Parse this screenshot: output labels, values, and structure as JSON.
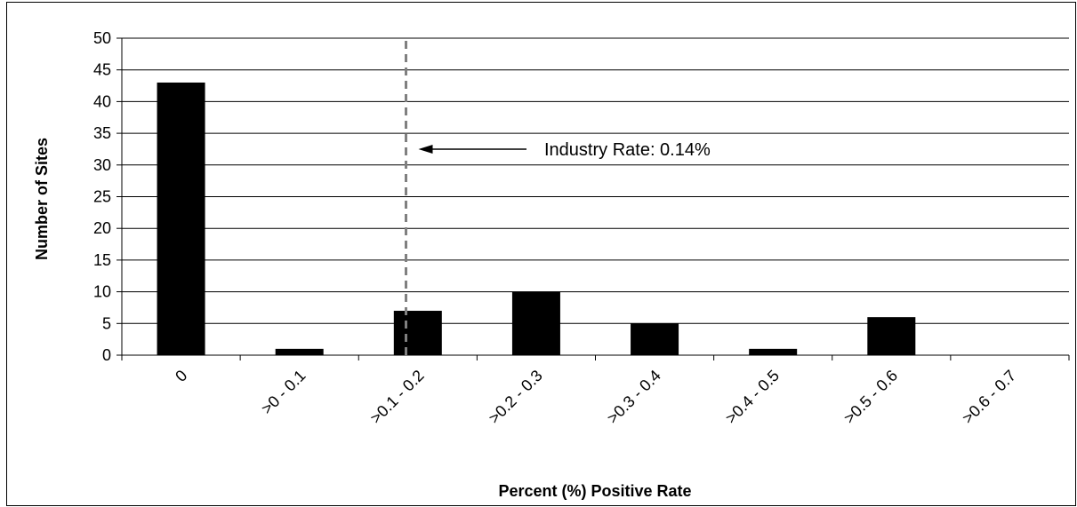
{
  "chart_data": {
    "type": "bar",
    "categories": [
      "0",
      ">0 - 0.1",
      ">0.1 - 0.2",
      ">0.2 - 0.3",
      ">0.3 - 0.4",
      ">0.4 - 0.5",
      ">0.5 - 0.6",
      ">0.6 - 0.7"
    ],
    "values": [
      43,
      1,
      7,
      10,
      5,
      1,
      6,
      0
    ],
    "xlabel": "Percent (%) Positive Rate",
    "ylabel": "Number of Sites",
    "ylim": [
      0,
      50
    ],
    "yticks": [
      0,
      5,
      10,
      15,
      20,
      25,
      30,
      35,
      40,
      45,
      50
    ],
    "grid": true,
    "bar_color": "#000000",
    "reference_line": {
      "value": 0.14,
      "style": "dashed",
      "color": "#808080",
      "annotation": "Industry Rate: 0.14%"
    }
  }
}
